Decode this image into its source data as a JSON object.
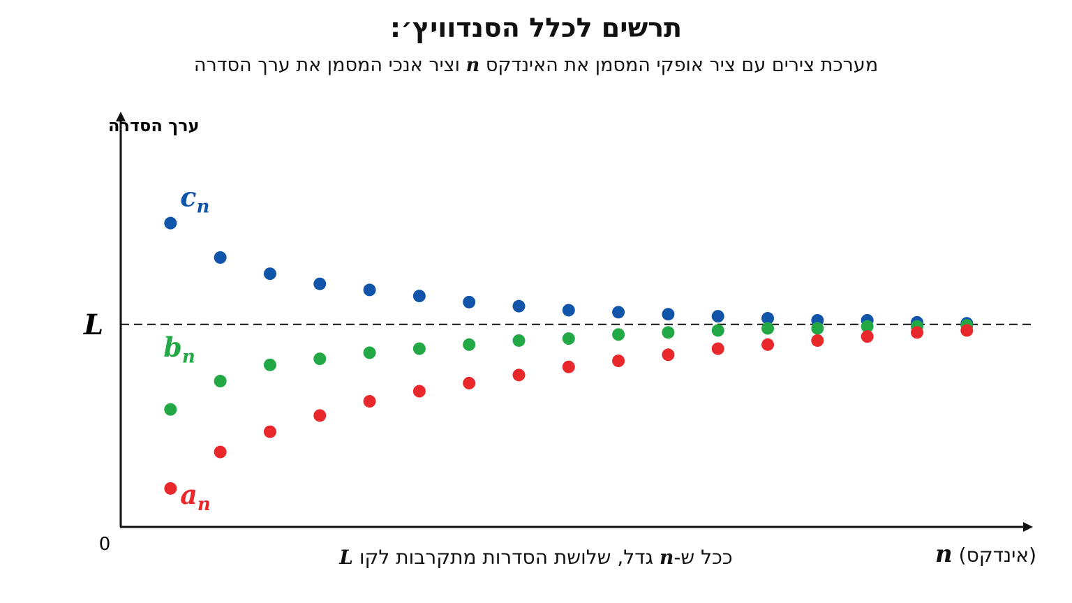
{
  "chart_data": {
    "type": "scatter",
    "title": "תרשים לכלל הסנדוויץ׳:",
    "subtitle_before": "מערכת צירים עם ציר אופקי המסמן את האינדקס",
    "subtitle_var": "n",
    "subtitle_after": "וציר אנכי המסמן את ערך הסדרה",
    "ylabel": "ערך הסדרה",
    "xlabel_var": "n",
    "xlabel_text": "(אינדקס)",
    "origin_label": "0",
    "limit_label": "L",
    "limit_value": 1,
    "caption_part1": "ככל ש-",
    "caption_var1": "n",
    "caption_part2": " גדל, שלושת הסדרות מתקרבות לקו ",
    "caption_var2": "L",
    "x": [
      1,
      2,
      3,
      4,
      5,
      6,
      7,
      8,
      9,
      10,
      11,
      12,
      13,
      14,
      15,
      16,
      17
    ],
    "xlim": [
      0,
      18.3
    ],
    "ylim": [
      0,
      2.05
    ],
    "grid": false,
    "series": [
      {
        "name": "c",
        "sub": "n",
        "color": "#1155aa",
        "values": [
          1.5,
          1.33,
          1.25,
          1.2,
          1.17,
          1.14,
          1.11,
          1.09,
          1.07,
          1.06,
          1.05,
          1.04,
          1.03,
          1.02,
          1.02,
          1.01,
          1.005
        ]
      },
      {
        "name": "b",
        "sub": "n",
        "color": "#22a845",
        "values": [
          0.58,
          0.72,
          0.8,
          0.83,
          0.86,
          0.88,
          0.9,
          0.92,
          0.93,
          0.95,
          0.96,
          0.97,
          0.98,
          0.98,
          0.99,
          0.99,
          0.995
        ]
      },
      {
        "name": "a",
        "sub": "n",
        "color": "#e8282a",
        "values": [
          0.19,
          0.37,
          0.47,
          0.55,
          0.62,
          0.67,
          0.71,
          0.75,
          0.79,
          0.82,
          0.85,
          0.88,
          0.9,
          0.92,
          0.94,
          0.96,
          0.97
        ]
      }
    ]
  }
}
